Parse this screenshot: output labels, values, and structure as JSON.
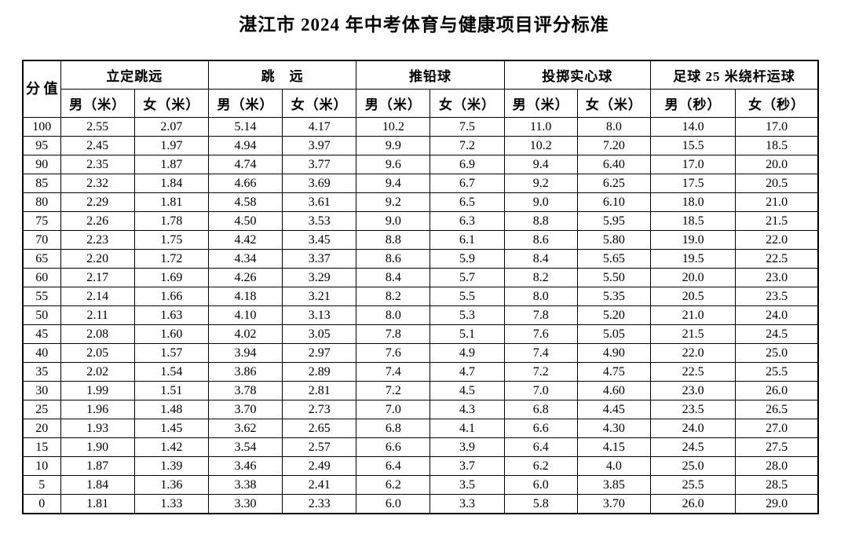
{
  "title": "湛江市 2024 年中考体育与健康项目评分标准",
  "table": {
    "score_label": "分\n值",
    "groups": [
      {
        "label": "立定跳远",
        "sub": [
          "男（米）",
          "女（米）"
        ]
      },
      {
        "label": "跳　远",
        "sub": [
          "男（米）",
          "女（米）"
        ]
      },
      {
        "label": "推铅球",
        "sub": [
          "男（米）",
          "女（米）"
        ]
      },
      {
        "label": "投掷实心球",
        "sub": [
          "男（米）",
          "女（米）"
        ]
      },
      {
        "label": "足球 25 米绕杆运球",
        "sub": [
          "男（秒）",
          "女（秒）"
        ]
      }
    ],
    "rows": [
      [
        "100",
        "2.55",
        "2.07",
        "5.14",
        "4.17",
        "10.2",
        "7.5",
        "11.0",
        "8.0",
        "14.0",
        "17.0"
      ],
      [
        "95",
        "2.45",
        "1.97",
        "4.94",
        "3.97",
        "9.9",
        "7.2",
        "10.2",
        "7.20",
        "15.5",
        "18.5"
      ],
      [
        "90",
        "2.35",
        "1.87",
        "4.74",
        "3.77",
        "9.6",
        "6.9",
        "9.4",
        "6.40",
        "17.0",
        "20.0"
      ],
      [
        "85",
        "2.32",
        "1.84",
        "4.66",
        "3.69",
        "9.4",
        "6.7",
        "9.2",
        "6.25",
        "17.5",
        "20.5"
      ],
      [
        "80",
        "2.29",
        "1.81",
        "4.58",
        "3.61",
        "9.2",
        "6.5",
        "9.0",
        "6.10",
        "18.0",
        "21.0"
      ],
      [
        "75",
        "2.26",
        "1.78",
        "4.50",
        "3.53",
        "9.0",
        "6.3",
        "8.8",
        "5.95",
        "18.5",
        "21.5"
      ],
      [
        "70",
        "2.23",
        "1.75",
        "4.42",
        "3.45",
        "8.8",
        "6.1",
        "8.6",
        "5.80",
        "19.0",
        "22.0"
      ],
      [
        "65",
        "2.20",
        "1.72",
        "4.34",
        "3.37",
        "8.6",
        "5.9",
        "8.4",
        "5.65",
        "19.5",
        "22.5"
      ],
      [
        "60",
        "2.17",
        "1.69",
        "4.26",
        "3.29",
        "8.4",
        "5.7",
        "8.2",
        "5.50",
        "20.0",
        "23.0"
      ],
      [
        "55",
        "2.14",
        "1.66",
        "4.18",
        "3.21",
        "8.2",
        "5.5",
        "8.0",
        "5.35",
        "20.5",
        "23.5"
      ],
      [
        "50",
        "2.11",
        "1.63",
        "4.10",
        "3.13",
        "8.0",
        "5.3",
        "7.8",
        "5.20",
        "21.0",
        "24.0"
      ],
      [
        "45",
        "2.08",
        "1.60",
        "4.02",
        "3.05",
        "7.8",
        "5.1",
        "7.6",
        "5.05",
        "21.5",
        "24.5"
      ],
      [
        "40",
        "2.05",
        "1.57",
        "3.94",
        "2.97",
        "7.6",
        "4.9",
        "7.4",
        "4.90",
        "22.0",
        "25.0"
      ],
      [
        "35",
        "2.02",
        "1.54",
        "3.86",
        "2.89",
        "7.4",
        "4.7",
        "7.2",
        "4.75",
        "22.5",
        "25.5"
      ],
      [
        "30",
        "1.99",
        "1.51",
        "3.78",
        "2.81",
        "7.2",
        "4.5",
        "7.0",
        "4.60",
        "23.0",
        "26.0"
      ],
      [
        "25",
        "1.96",
        "1.48",
        "3.70",
        "2.73",
        "7.0",
        "4.3",
        "6.8",
        "4.45",
        "23.5",
        "26.5"
      ],
      [
        "20",
        "1.93",
        "1.45",
        "3.62",
        "2.65",
        "6.8",
        "4.1",
        "6.6",
        "4.30",
        "24.0",
        "27.0"
      ],
      [
        "15",
        "1.90",
        "1.42",
        "3.54",
        "2.57",
        "6.6",
        "3.9",
        "6.4",
        "4.15",
        "24.5",
        "27.5"
      ],
      [
        "10",
        "1.87",
        "1.39",
        "3.46",
        "2.49",
        "6.4",
        "3.7",
        "6.2",
        "4.0",
        "25.0",
        "28.0"
      ],
      [
        "5",
        "1.84",
        "1.36",
        "3.38",
        "2.41",
        "6.2",
        "3.5",
        "6.0",
        "3.85",
        "25.5",
        "28.5"
      ],
      [
        "0",
        "1.81",
        "1.33",
        "3.30",
        "2.33",
        "6.0",
        "3.3",
        "5.8",
        "3.70",
        "26.0",
        "29.0"
      ]
    ]
  }
}
